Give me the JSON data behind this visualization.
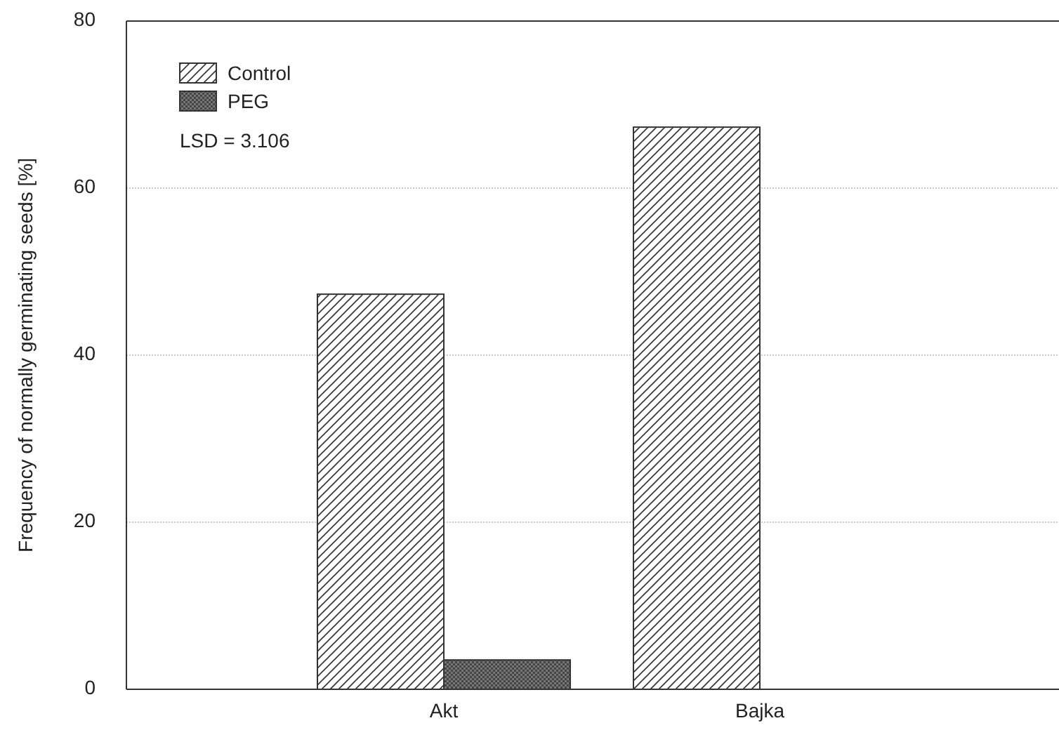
{
  "chart_data": {
    "type": "bar",
    "ylabel": "Frequency of normally germinating seeds [%]",
    "categories": [
      "Akt",
      "Bajka"
    ],
    "series": [
      {
        "name": "Control",
        "color": "#ffffff",
        "values": [
          47.3,
          67.3
        ]
      },
      {
        "name": "PEG",
        "color": "#777777",
        "values": [
          3.5,
          0
        ]
      }
    ],
    "ylim": [
      0,
      80
    ],
    "yticks": [
      0,
      20,
      40,
      60,
      80
    ],
    "grid": "y",
    "legend": "top left",
    "annotations": [
      "LSD = 3.106"
    ]
  }
}
